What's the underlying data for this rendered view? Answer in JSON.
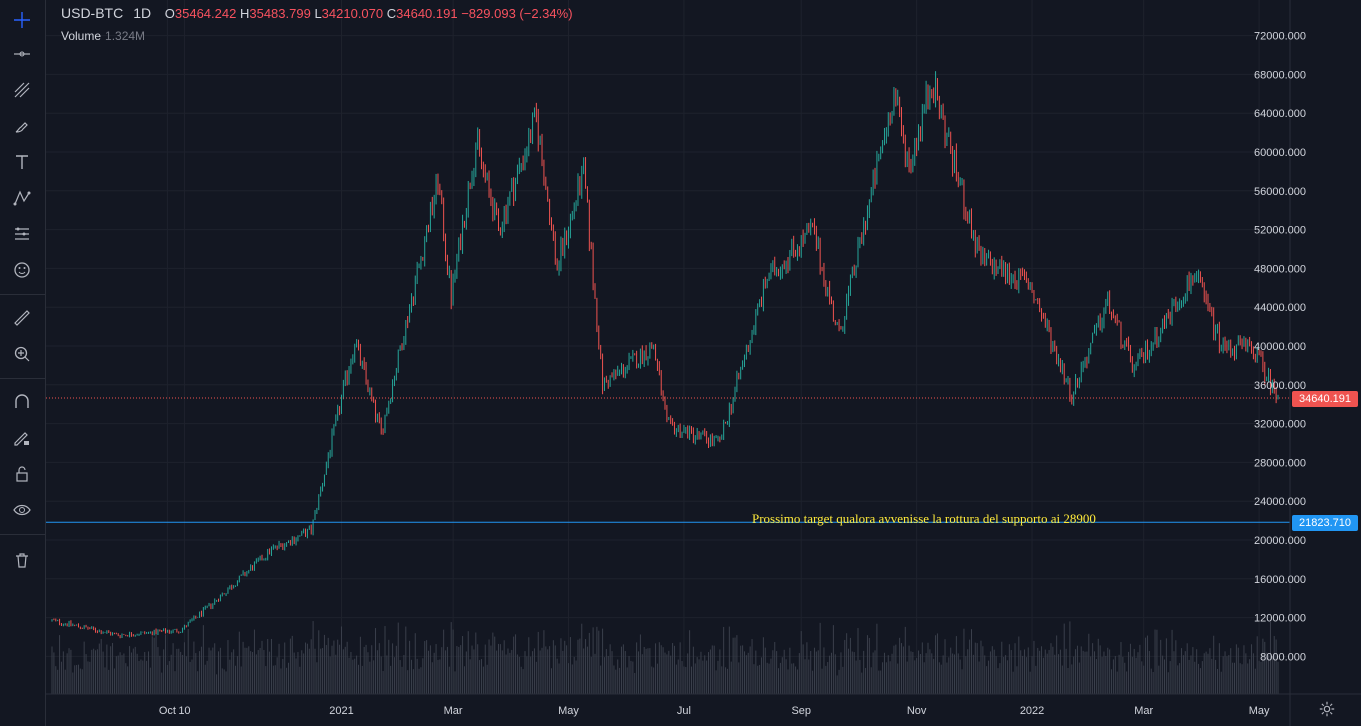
{
  "legend": {
    "symbol": "USD-BTC",
    "interval": "1D",
    "open_label": "O",
    "open": "35464.242",
    "high_label": "H",
    "high": "35483.799",
    "low_label": "L",
    "low": "34210.070",
    "close_label": "C",
    "close": "34640.191",
    "change": "−829.093 (−2.34%)",
    "volume_label": "Volume",
    "volume_value": "1.324M"
  },
  "annotation": "Prossimo target qualora avvenisse la rottura del supporto ai 28900",
  "price_tags": {
    "last": "34640.191",
    "level": "21823.710"
  },
  "colors": {
    "up": "#26a69a",
    "down": "#ef5350",
    "level_line": "#2196f3",
    "annotation": "#ffeb3b"
  },
  "toolbar_icons": [
    "crosshair-icon",
    "trend-line-icon",
    "fib-icon",
    "brush-icon",
    "text-icon",
    "pattern-icon",
    "forecast-icon",
    "emoji-icon",
    "ruler-icon",
    "zoom-icon",
    "magnet-icon",
    "lock-draw-icon",
    "lock-icon",
    "eye-icon",
    "trash-icon"
  ],
  "chart_data": {
    "type": "candlestick",
    "title": "",
    "xlabel": "",
    "ylabel": "",
    "x_ticks": [
      "Oct",
      "10",
      "2021",
      "Mar",
      "May",
      "Jul",
      "Sep",
      "Nov",
      "2022",
      "Mar",
      "May"
    ],
    "y_ticks": [
      "8000.000",
      "12000.000",
      "16000.000",
      "20000.000",
      "24000.000",
      "28000.000",
      "32000.000",
      "36000.000",
      "40000.000",
      "44000.000",
      "48000.000",
      "52000.000",
      "56000.000",
      "60000.000",
      "64000.000",
      "68000.000",
      "72000.000"
    ],
    "ylim": [
      2500,
      76000
    ],
    "x_range": [
      "2020-08-01",
      "2022-05-11"
    ],
    "horizontal_lines": [
      {
        "value": 34640.191,
        "style": "dotted",
        "color": "#ef5350"
      },
      {
        "value": 21823.71,
        "style": "solid",
        "color": "#2196f3"
      }
    ],
    "price_path_keypoints": [
      [
        "2020-08-01",
        11700
      ],
      [
        "2020-09-05",
        10200
      ],
      [
        "2020-10-08",
        10700
      ],
      [
        "2020-10-21",
        12800
      ],
      [
        "2020-11-25",
        19000
      ],
      [
        "2020-12-16",
        21000
      ],
      [
        "2021-01-08",
        40500
      ],
      [
        "2021-01-22",
        31000
      ],
      [
        "2021-02-21",
        57000
      ],
      [
        "2021-02-28",
        45000
      ],
      [
        "2021-03-13",
        61000
      ],
      [
        "2021-03-25",
        52000
      ],
      [
        "2021-04-14",
        63500
      ],
      [
        "2021-04-25",
        48000
      ],
      [
        "2021-05-09",
        58000
      ],
      [
        "2021-05-19",
        36000
      ],
      [
        "2021-06-15",
        40000
      ],
      [
        "2021-06-22",
        31800
      ],
      [
        "2021-07-20",
        30000
      ],
      [
        "2021-08-14",
        47000
      ],
      [
        "2021-09-07",
        52000
      ],
      [
        "2021-09-21",
        41000
      ],
      [
        "2021-10-20",
        66000
      ],
      [
        "2021-10-28",
        58500
      ],
      [
        "2021-11-09",
        67500
      ],
      [
        "2021-12-04",
        49000
      ],
      [
        "2021-12-31",
        46300
      ],
      [
        "2022-01-22",
        35000
      ],
      [
        "2022-02-10",
        44500
      ],
      [
        "2022-02-24",
        37500
      ],
      [
        "2022-03-28",
        47500
      ],
      [
        "2022-04-11",
        40000
      ],
      [
        "2022-04-28",
        39700
      ],
      [
        "2022-05-11",
        34640
      ]
    ]
  }
}
